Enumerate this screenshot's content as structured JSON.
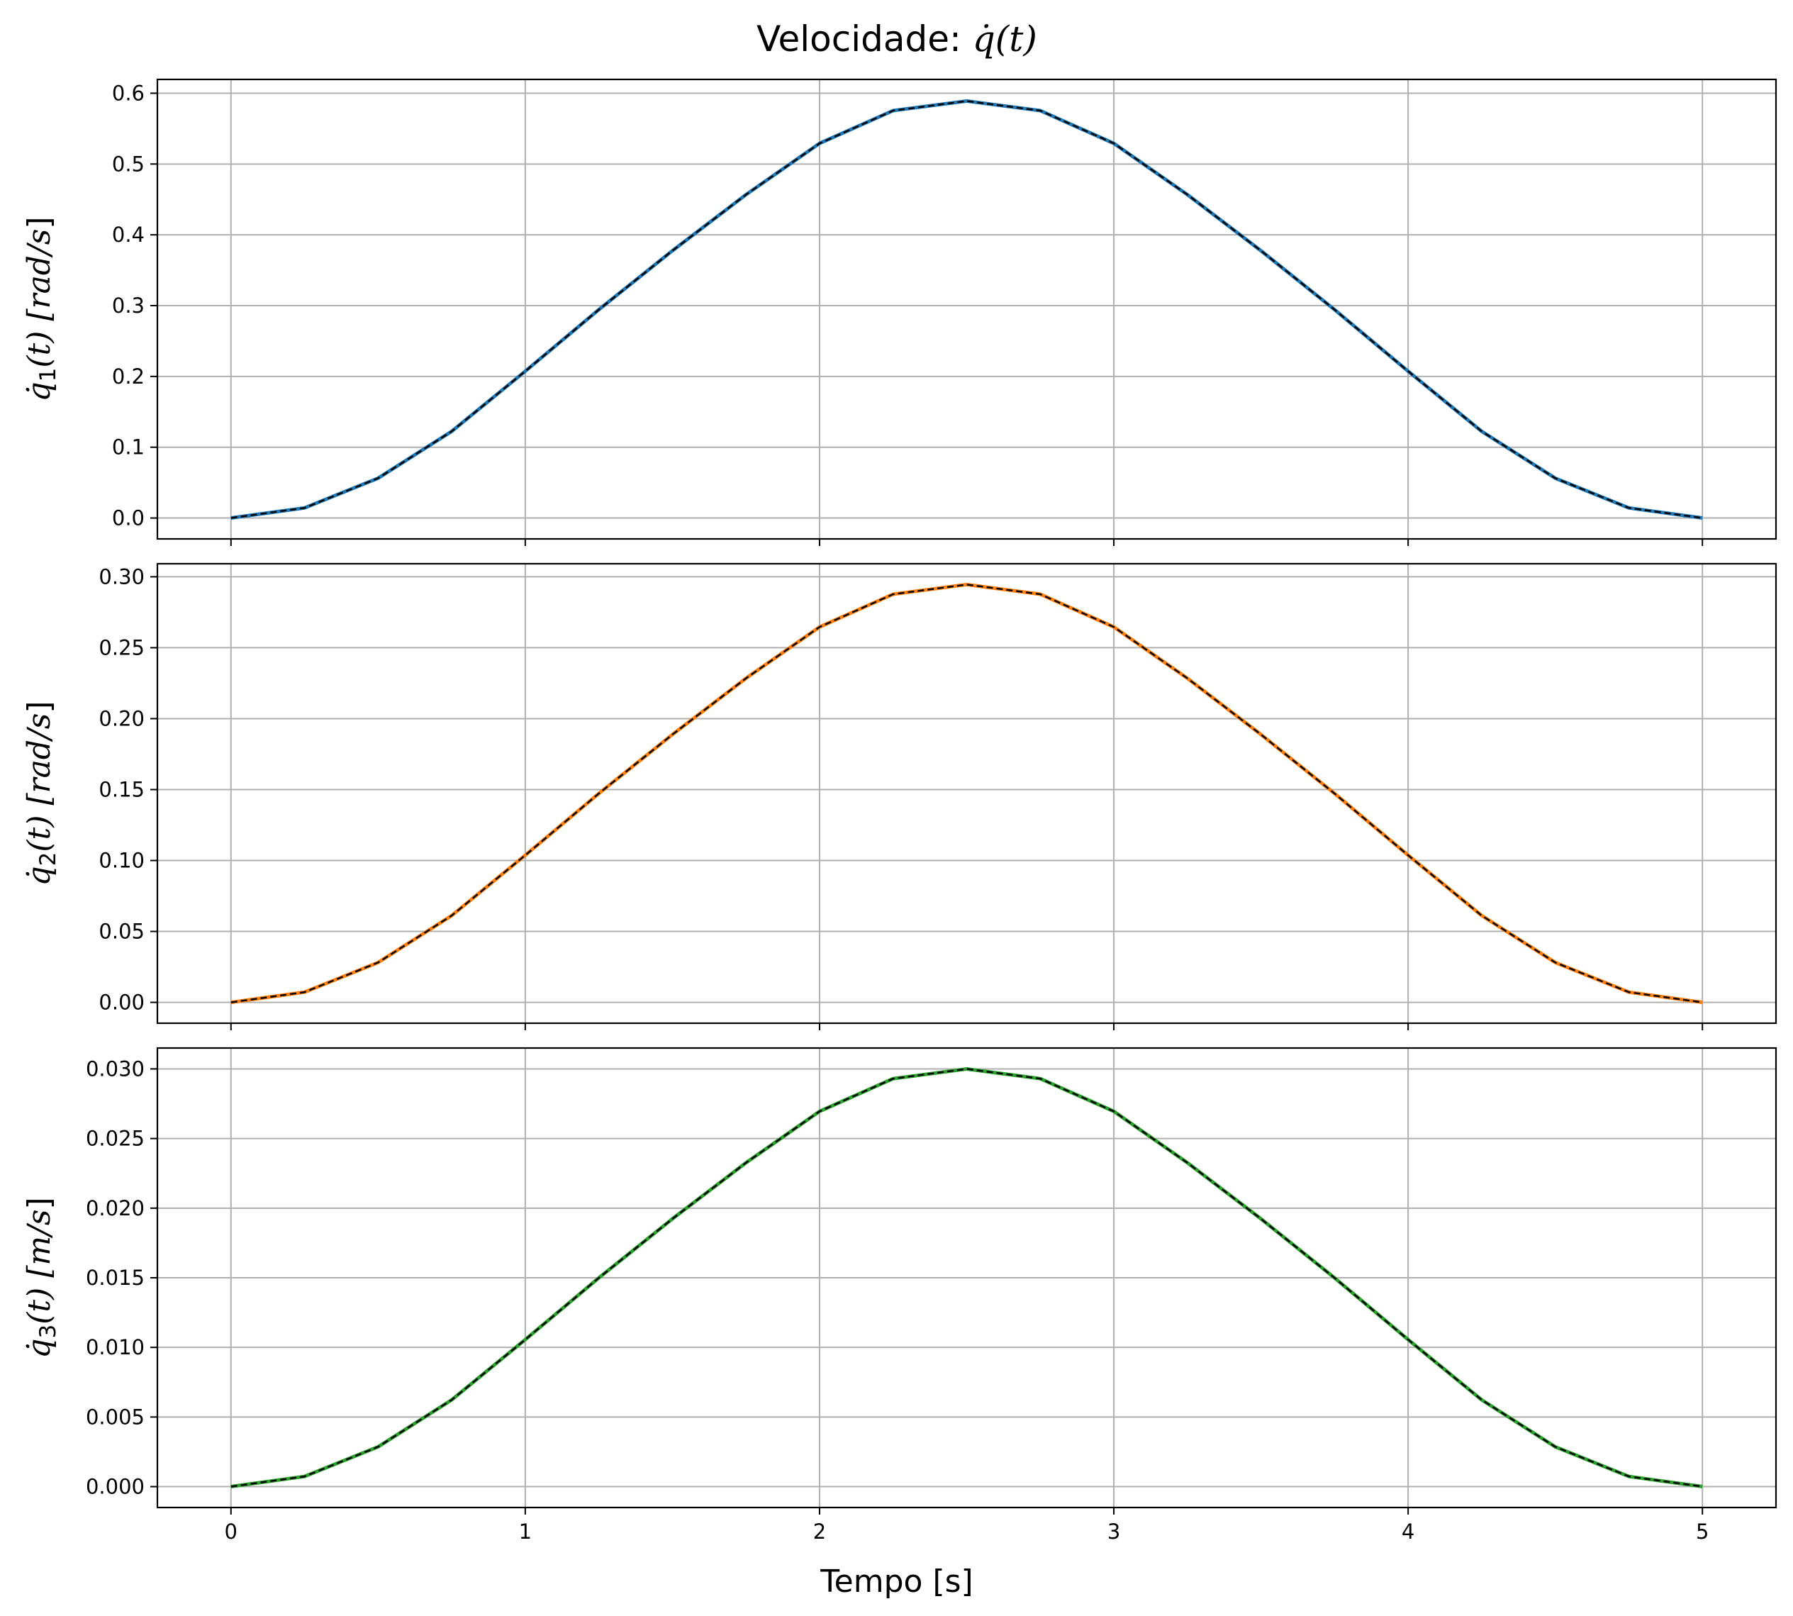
{
  "figure": {
    "title_prefix": "Velocidade: ",
    "title_math": "q̇(t)",
    "xlabel": "Tempo [s]"
  },
  "chart_data": [
    {
      "type": "line",
      "ylabel": {
        "symbol": "q̇",
        "subscript": "1",
        "arg": "(t) [",
        "unit": "rad/s",
        "close": "]"
      },
      "xlim": [
        -0.25,
        5.25
      ],
      "ylim": [
        -0.0295,
        0.6195
      ],
      "x_ticks": [
        0,
        1,
        2,
        3,
        4,
        5
      ],
      "x_tick_labels": [
        "0",
        "1",
        "2",
        "3",
        "4",
        "5"
      ],
      "y_ticks": [
        0.0,
        0.1,
        0.2,
        0.3,
        0.4,
        0.5,
        0.6
      ],
      "y_tick_labels": [
        "0.0",
        "0.1",
        "0.2",
        "0.3",
        "0.4",
        "0.5",
        "0.6"
      ],
      "grid": true,
      "series": [
        {
          "style": "solid",
          "color": "#1f77b4",
          "x": [
            0,
            0.25,
            0.5,
            0.75,
            1.0,
            1.25,
            1.5,
            1.75,
            2.0,
            2.25,
            2.5,
            2.75,
            3.0,
            3.25,
            3.5,
            3.75,
            4.0,
            4.25,
            4.5,
            4.75,
            5.0
          ],
          "y": [
            0.0,
            0.0143,
            0.0562,
            0.1224,
            0.2074,
            0.2943,
            0.3775,
            0.4567,
            0.5292,
            0.5754,
            0.589,
            0.5754,
            0.5292,
            0.4567,
            0.3775,
            0.2943,
            0.2074,
            0.1224,
            0.0562,
            0.0143,
            0.0
          ]
        },
        {
          "style": "dashed",
          "color": "#000000",
          "x": [
            0,
            0.25,
            0.5,
            0.75,
            1.0,
            1.25,
            1.5,
            1.75,
            2.0,
            2.25,
            2.5,
            2.75,
            3.0,
            3.25,
            3.5,
            3.75,
            4.0,
            4.25,
            4.5,
            4.75,
            5.0
          ],
          "y": [
            0.0,
            0.0143,
            0.0562,
            0.1224,
            0.2074,
            0.2943,
            0.3775,
            0.4567,
            0.5292,
            0.5754,
            0.589,
            0.5754,
            0.5292,
            0.4567,
            0.3775,
            0.2943,
            0.2074,
            0.1224,
            0.0562,
            0.0143,
            0.0
          ]
        }
      ]
    },
    {
      "type": "line",
      "ylabel": {
        "symbol": "q̇",
        "subscript": "2",
        "arg": "(t) [",
        "unit": "rad/s",
        "close": "]"
      },
      "xlim": [
        -0.25,
        5.25
      ],
      "ylim": [
        -0.0147,
        0.3092
      ],
      "x_ticks": [
        0,
        1,
        2,
        3,
        4,
        5
      ],
      "x_tick_labels": [
        "0",
        "1",
        "2",
        "3",
        "4",
        "5"
      ],
      "y_ticks": [
        0.0,
        0.05,
        0.1,
        0.15,
        0.2,
        0.25,
        0.3
      ],
      "y_tick_labels": [
        "0.00",
        "0.05",
        "0.10",
        "0.15",
        "0.20",
        "0.25",
        "0.30"
      ],
      "grid": true,
      "series": [
        {
          "style": "solid",
          "color": "#ff7f0e",
          "x": [
            0,
            0.25,
            0.5,
            0.75,
            1.0,
            1.25,
            1.5,
            1.75,
            2.0,
            2.25,
            2.5,
            2.75,
            3.0,
            3.25,
            3.5,
            3.75,
            4.0,
            4.25,
            4.5,
            4.75,
            5.0
          ],
          "y": [
            0.0,
            0.0072,
            0.0281,
            0.0612,
            0.1037,
            0.1472,
            0.1888,
            0.2284,
            0.2646,
            0.2877,
            0.2945,
            0.2877,
            0.2646,
            0.2284,
            0.1888,
            0.1472,
            0.1037,
            0.0612,
            0.0281,
            0.0072,
            0.0
          ]
        },
        {
          "style": "dashed",
          "color": "#000000",
          "x": [
            0,
            0.25,
            0.5,
            0.75,
            1.0,
            1.25,
            1.5,
            1.75,
            2.0,
            2.25,
            2.5,
            2.75,
            3.0,
            3.25,
            3.5,
            3.75,
            4.0,
            4.25,
            4.5,
            4.75,
            5.0
          ],
          "y": [
            0.0,
            0.0072,
            0.0281,
            0.0612,
            0.1037,
            0.1472,
            0.1888,
            0.2284,
            0.2646,
            0.2877,
            0.2945,
            0.2877,
            0.2646,
            0.2284,
            0.1888,
            0.1472,
            0.1037,
            0.0612,
            0.0281,
            0.0072,
            0.0
          ]
        }
      ]
    },
    {
      "type": "line",
      "ylabel": {
        "symbol": "q̇",
        "subscript": "3",
        "arg": "(t) [",
        "unit": "m/s",
        "close": "]"
      },
      "xlim": [
        -0.25,
        5.25
      ],
      "ylim": [
        -0.0015,
        0.0315
      ],
      "x_ticks": [
        0,
        1,
        2,
        3,
        4,
        5
      ],
      "x_tick_labels": [
        "0",
        "1",
        "2",
        "3",
        "4",
        "5"
      ],
      "y_ticks": [
        0.0,
        0.005,
        0.01,
        0.015,
        0.02,
        0.025,
        0.03
      ],
      "y_tick_labels": [
        "0.000",
        "0.005",
        "0.010",
        "0.015",
        "0.020",
        "0.025",
        "0.030"
      ],
      "grid": true,
      "series": [
        {
          "style": "solid",
          "color": "#2ca02c",
          "x": [
            0,
            0.25,
            0.5,
            0.75,
            1.0,
            1.25,
            1.5,
            1.75,
            2.0,
            2.25,
            2.5,
            2.75,
            3.0,
            3.25,
            3.5,
            3.75,
            4.0,
            4.25,
            4.5,
            4.75,
            5.0
          ],
          "y": [
            0.0,
            0.00073,
            0.00286,
            0.00623,
            0.01056,
            0.01499,
            0.01923,
            0.02326,
            0.02695,
            0.0293,
            0.03,
            0.0293,
            0.02695,
            0.02326,
            0.01923,
            0.01499,
            0.01056,
            0.00623,
            0.00286,
            0.00073,
            0.0
          ]
        },
        {
          "style": "dashed",
          "color": "#000000",
          "x": [
            0,
            0.25,
            0.5,
            0.75,
            1.0,
            1.25,
            1.5,
            1.75,
            2.0,
            2.25,
            2.5,
            2.75,
            3.0,
            3.25,
            3.5,
            3.75,
            4.0,
            4.25,
            4.5,
            4.75,
            5.0
          ],
          "y": [
            0.0,
            0.00073,
            0.00286,
            0.00623,
            0.01056,
            0.01499,
            0.01923,
            0.02326,
            0.02695,
            0.0293,
            0.03,
            0.0293,
            0.02695,
            0.02326,
            0.01923,
            0.01499,
            0.01056,
            0.00623,
            0.00286,
            0.00073,
            0.0
          ]
        }
      ]
    }
  ]
}
